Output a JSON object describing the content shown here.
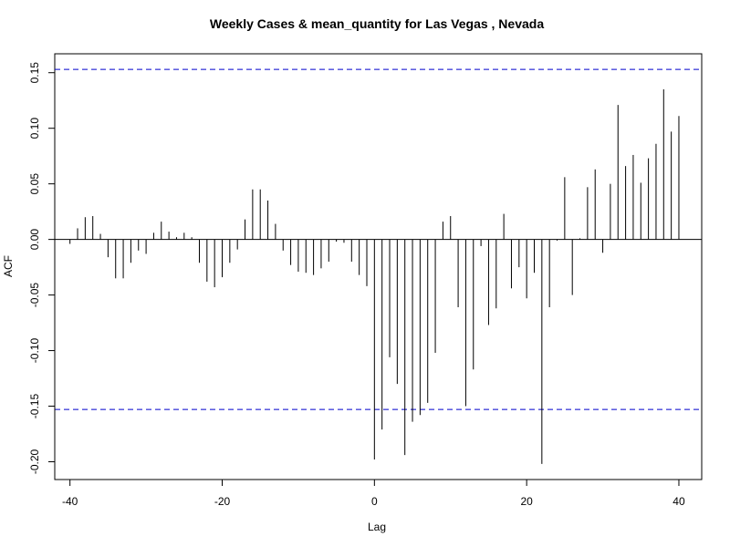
{
  "chart_data": {
    "type": "bar",
    "title": "Weekly Cases & mean_quantity for Las Vegas , Nevada",
    "xlabel": "Lag",
    "ylabel": "ACF",
    "xlim": [
      -42,
      43
    ],
    "ylim": [
      -0.216,
      0.167
    ],
    "x_ticks": [
      -40,
      -20,
      0,
      20,
      40
    ],
    "y_ticks": [
      -0.2,
      -0.15,
      -0.1,
      -0.05,
      0.0,
      0.05,
      0.1,
      0.15
    ],
    "y_tick_labels": [
      "-0.20",
      "-0.15",
      "-0.10",
      "-0.05",
      "0.00",
      "0.05",
      "0.10",
      "0.15"
    ],
    "confidence_bounds": [
      0.153,
      -0.153
    ],
    "colors": {
      "bars": "#000000",
      "bounds": "#0000CC",
      "zero": "#000000"
    },
    "series": [
      {
        "lags": [
          -40,
          -39,
          -38,
          -37,
          -36,
          -35,
          -34,
          -33,
          -32,
          -31,
          -30,
          -29,
          -28,
          -27,
          -26,
          -25,
          -24,
          -23,
          -22,
          -21,
          -20,
          -19,
          -18,
          -17,
          -16,
          -15,
          -14,
          -13,
          -12,
          -11,
          -10,
          -9,
          -8,
          -7,
          -6,
          -5,
          -4,
          -3,
          -2,
          -1,
          0,
          1,
          2,
          3,
          4,
          5,
          6,
          7,
          8,
          9,
          10,
          11,
          12,
          13,
          14,
          15,
          16,
          17,
          18,
          19,
          20,
          21,
          22,
          23,
          24,
          25,
          26,
          27,
          28,
          29,
          30,
          31,
          32,
          33,
          34,
          35,
          36,
          37,
          38,
          39,
          40
        ],
        "values": [
          -0.004,
          0.01,
          0.02,
          0.021,
          0.005,
          -0.016,
          -0.035,
          -0.035,
          -0.021,
          -0.01,
          -0.013,
          0.006,
          0.016,
          0.007,
          0.002,
          0.006,
          0.002,
          -0.021,
          -0.038,
          -0.043,
          -0.034,
          -0.021,
          -0.009,
          0.018,
          0.045,
          0.045,
          0.035,
          0.014,
          -0.01,
          -0.023,
          -0.029,
          -0.03,
          -0.032,
          -0.026,
          -0.02,
          -0.002,
          -0.003,
          -0.02,
          -0.032,
          -0.042,
          -0.198,
          -0.171,
          -0.106,
          -0.13,
          -0.194,
          -0.164,
          -0.158,
          -0.147,
          -0.102,
          0.016,
          0.021,
          -0.061,
          -0.15,
          -0.117,
          -0.006,
          -0.077,
          -0.062,
          0.023,
          -0.044,
          -0.025,
          -0.053,
          -0.03,
          -0.202,
          -0.061,
          -0.001,
          0.056,
          -0.05,
          0.001,
          0.047,
          0.063,
          -0.012,
          0.05,
          0.121,
          0.066,
          0.076,
          0.051,
          0.073,
          0.086,
          0.135,
          0.097,
          0.111
        ]
      }
    ]
  }
}
